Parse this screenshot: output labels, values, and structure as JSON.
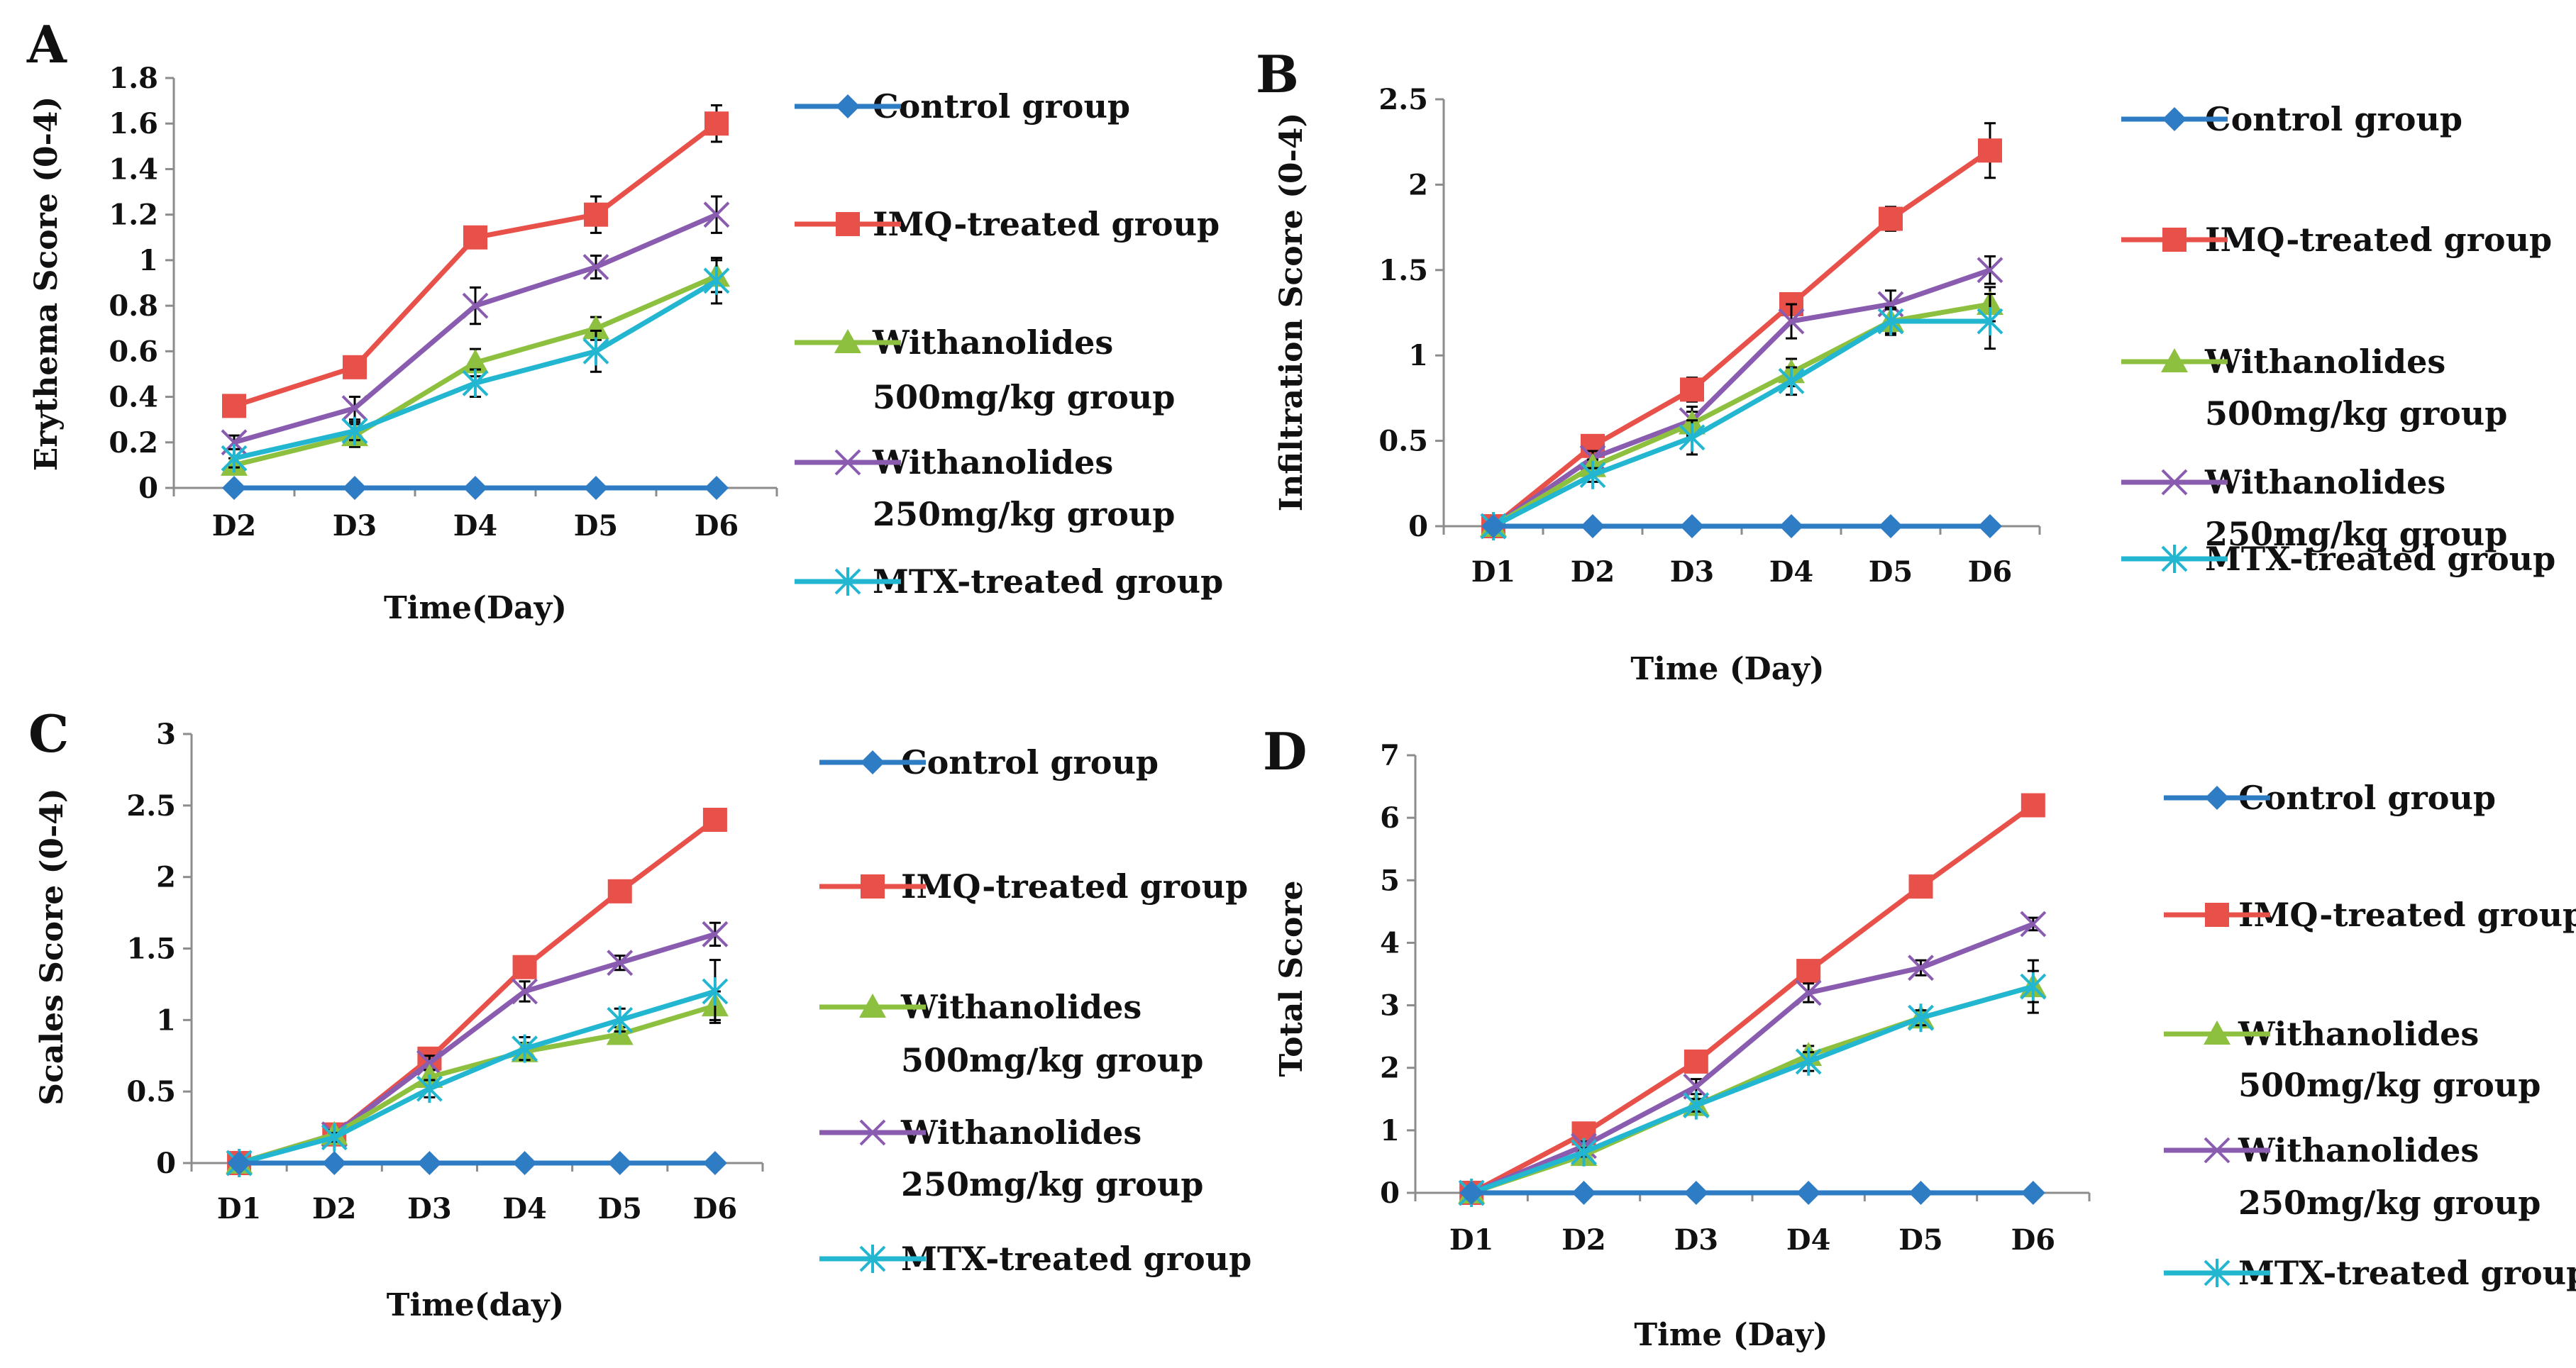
{
  "colors": {
    "control": "#2e7cc4",
    "imq": "#e8504a",
    "w500": "#8dc03e",
    "w250": "#8a5cb0",
    "mtx": "#23b6d1",
    "axis": "#8c8c8c",
    "errorbar": "#000000"
  },
  "chart_data": [
    {
      "type": "line",
      "panel": "A",
      "xlabel": "Time(Day)",
      "ylabel": "Erythema Score (0-4)",
      "categories": [
        "D2",
        "D3",
        "D4",
        "D5",
        "D6"
      ],
      "yticks": [
        "0",
        "0.2",
        "0.4",
        "0.6",
        "0.8",
        "1",
        "1.2",
        "1.4",
        "1.6",
        "1.8"
      ],
      "ylim": [
        0,
        1.8
      ],
      "legend": [
        "Control group",
        "IMQ-treated group",
        "Withanolides",
        "500mg/kg group",
        "Withanolides",
        "250mg/kg group",
        "MTX-treated group"
      ],
      "series": [
        {
          "name": "Control group",
          "values": [
            0,
            0,
            0,
            0,
            0
          ],
          "err": [
            0,
            0,
            0,
            0,
            0
          ]
        },
        {
          "name": "IMQ-treated group",
          "values": [
            0.36,
            0.53,
            1.1,
            1.2,
            1.6
          ],
          "err": [
            0.02,
            0.03,
            0.03,
            0.08,
            0.08
          ]
        },
        {
          "name": "Withanolides 500mg/kg group",
          "values": [
            0.1,
            0.23,
            0.55,
            0.7,
            0.93
          ],
          "err": [
            0.03,
            0.05,
            0.06,
            0.05,
            0.07
          ]
        },
        {
          "name": "Withanolides 250mg/kg group",
          "values": [
            0.2,
            0.35,
            0.8,
            0.97,
            1.2
          ],
          "err": [
            0.03,
            0.05,
            0.08,
            0.05,
            0.08
          ]
        },
        {
          "name": "MTX-treated group",
          "values": [
            0.13,
            0.25,
            0.46,
            0.6,
            0.91
          ],
          "err": [
            0.04,
            0.04,
            0.06,
            0.09,
            0.1
          ]
        }
      ]
    },
    {
      "type": "line",
      "panel": "B",
      "xlabel": "Time (Day)",
      "ylabel": "Infiltration Score (0-4)",
      "categories": [
        "D1",
        "D2",
        "D3",
        "D4",
        "D5",
        "D6"
      ],
      "yticks": [
        "0",
        "0.5",
        "1",
        "1.5",
        "2",
        "2.5"
      ],
      "ylim": [
        0,
        2.5
      ],
      "legend": [
        "Control group",
        "IMQ-treated group",
        "Withanolides",
        "500mg/kg group",
        "Withanolides",
        "250mg/kg group",
        "MTX-treated group"
      ],
      "series": [
        {
          "name": "Control group",
          "values": [
            0,
            0,
            0,
            0,
            0,
            0
          ],
          "err": [
            0,
            0,
            0,
            0,
            0,
            0
          ]
        },
        {
          "name": "IMQ-treated group",
          "values": [
            0,
            0.47,
            0.8,
            1.3,
            1.8,
            2.2
          ],
          "err": [
            0,
            0.03,
            0.07,
            0.05,
            0.07,
            0.16
          ]
        },
        {
          "name": "Withanolides 500mg/kg group",
          "values": [
            0,
            0.35,
            0.6,
            0.9,
            1.2,
            1.3
          ],
          "err": [
            0,
            0.04,
            0.07,
            0.08,
            0.08,
            0.1
          ]
        },
        {
          "name": "Withanolides 250mg/kg group",
          "values": [
            0,
            0.4,
            0.62,
            1.2,
            1.3,
            1.5
          ],
          "err": [
            0,
            0.04,
            0.08,
            0.1,
            0.08,
            0.08
          ]
        },
        {
          "name": "MTX-treated group",
          "values": [
            0,
            0.3,
            0.52,
            0.85,
            1.2,
            1.2
          ],
          "err": [
            0,
            0.04,
            0.1,
            0.08,
            0.07,
            0.16
          ]
        }
      ]
    },
    {
      "type": "line",
      "panel": "C",
      "xlabel": "Time(day)",
      "ylabel": "Scales Score (0-4)",
      "categories": [
        "D1",
        "D2",
        "D3",
        "D4",
        "D5",
        "D6"
      ],
      "yticks": [
        "0",
        "0.5",
        "1",
        "1.5",
        "2",
        "2.5",
        "3"
      ],
      "ylim": [
        0,
        3
      ],
      "legend": [
        "Control group",
        "IMQ-treated group",
        "Withanolides",
        "500mg/kg group",
        "Withanolides",
        "250mg/kg group",
        "MTX-treated group"
      ],
      "series": [
        {
          "name": "Control group",
          "values": [
            0,
            0,
            0,
            0,
            0,
            0
          ],
          "err": [
            0,
            0,
            0,
            0,
            0,
            0
          ]
        },
        {
          "name": "IMQ-treated group",
          "values": [
            0,
            0.2,
            0.73,
            1.37,
            1.9,
            2.4
          ],
          "err": [
            0,
            0.02,
            0.05,
            0.05,
            0.04,
            0.04
          ]
        },
        {
          "name": "Withanolides 500mg/kg group",
          "values": [
            0,
            0.2,
            0.6,
            0.78,
            0.9,
            1.1
          ],
          "err": [
            0,
            0.03,
            0.05,
            0.06,
            0.05,
            0.1
          ]
        },
        {
          "name": "Withanolides 250mg/kg group",
          "values": [
            0,
            0.2,
            0.7,
            1.2,
            1.4,
            1.6
          ],
          "err": [
            0,
            0.03,
            0.05,
            0.07,
            0.05,
            0.08
          ]
        },
        {
          "name": "MTX-treated group",
          "values": [
            0,
            0.18,
            0.52,
            0.8,
            1.0,
            1.2
          ],
          "err": [
            0,
            0.03,
            0.06,
            0.08,
            0.08,
            0.22
          ]
        }
      ]
    },
    {
      "type": "line",
      "panel": "D",
      "xlabel": "Time (Day)",
      "ylabel": "Total Score",
      "categories": [
        "D1",
        "D2",
        "D3",
        "D4",
        "D5",
        "D6"
      ],
      "yticks": [
        "0",
        "1",
        "2",
        "3",
        "4",
        "5",
        "6",
        "7"
      ],
      "ylim": [
        0,
        7
      ],
      "legend": [
        "Control group",
        "IMQ-treated group",
        "Withanolides",
        "500mg/kg group",
        "Withanolides",
        "250mg/kg group",
        "MTX-treated group"
      ],
      "series": [
        {
          "name": "Control group",
          "values": [
            0,
            0,
            0,
            0,
            0,
            0
          ],
          "err": [
            0,
            0,
            0,
            0,
            0,
            0
          ]
        },
        {
          "name": "IMQ-treated group",
          "values": [
            0,
            0.95,
            2.1,
            3.55,
            4.9,
            6.2
          ],
          "err": [
            0,
            0.05,
            0.1,
            0.1,
            0.1,
            0.1
          ]
        },
        {
          "name": "Withanolides 500mg/kg group",
          "values": [
            0,
            0.6,
            1.4,
            2.2,
            2.8,
            3.3
          ],
          "err": [
            0,
            0.07,
            0.1,
            0.15,
            0.1,
            0.25
          ]
        },
        {
          "name": "Withanolides 250mg/kg group",
          "values": [
            0,
            0.75,
            1.7,
            3.2,
            3.6,
            4.3
          ],
          "err": [
            0,
            0.07,
            0.12,
            0.15,
            0.12,
            0.1
          ]
        },
        {
          "name": "MTX-treated group",
          "values": [
            0,
            0.65,
            1.4,
            2.1,
            2.8,
            3.3
          ],
          "err": [
            0,
            0.07,
            0.1,
            0.15,
            0.12,
            0.42
          ]
        }
      ]
    }
  ]
}
